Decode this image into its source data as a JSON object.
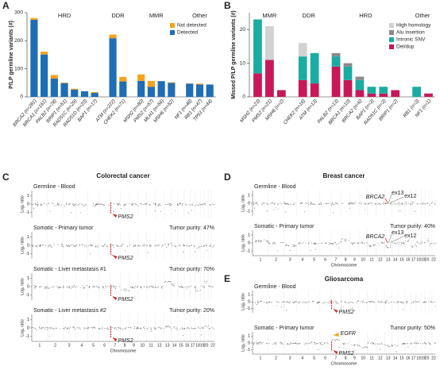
{
  "chart_data": [
    {
      "panel": "A",
      "type": "bar",
      "stacked": true,
      "ylabel": "P/LP germline variants (#)",
      "ylim": [
        0,
        300
      ],
      "yticks": [
        0,
        100,
        200,
        300
      ],
      "legend": "upper right",
      "groups": [
        {
          "name": "HRD",
          "categories": [
            "BRCA2 (n=281)",
            "BRCA1 (n=161)",
            "PALB2 (n=78)",
            "BRIP1 (n=51)",
            "RAD51C (n=29)",
            "RAD51D (n=20)",
            "BAP1 (n=17)"
          ]
        },
        {
          "name": "DDR",
          "categories": [
            "ATM (n=222)",
            "CHEK2 (n=71)"
          ]
        },
        {
          "name": "MMR",
          "categories": [
            "MSH2 (n=80)",
            "PMS2 (n=57)",
            "MLH1 (n=56)",
            "MSH6 (n=52)"
          ]
        },
        {
          "name": "Other",
          "categories": [
            "NF1 (n=48)",
            "RB1 (n=47)",
            "TP53 (n=44)"
          ]
        }
      ],
      "series": [
        {
          "name": "Detected",
          "color": "#1f6db5",
          "values": [
            275,
            151,
            65,
            49,
            26,
            20,
            14,
            209,
            55,
            57,
            36,
            56,
            50,
            47,
            44,
            44
          ]
        },
        {
          "name": "Not detected",
          "color": "#f5a31a",
          "values": [
            6,
            10,
            13,
            2,
            3,
            0,
            3,
            13,
            16,
            23,
            21,
            0,
            2,
            1,
            3,
            0
          ]
        }
      ]
    },
    {
      "panel": "B",
      "type": "bar",
      "stacked": true,
      "ylabel": "Missed P/LP germline variants (#)",
      "ylim": [
        0,
        25
      ],
      "yticks": [
        0,
        10,
        20
      ],
      "legend": "upper right",
      "groups": [
        {
          "name": "MMR",
          "categories": [
            "MSH2 (n=23)",
            "PMS2 (n=21)",
            "MSH6 (n=2)"
          ]
        },
        {
          "name": "DDR",
          "categories": [
            "CHEK2 (n=16)",
            "ATM (n=13)"
          ]
        },
        {
          "name": "HRD",
          "categories": [
            "PALB2 (n=13)",
            "BRCA1 (n=10)",
            "BRCA2 (n=6)",
            "BAP1 (n=3)",
            "RAD51C (n=3)",
            "BRIP1 (n=2)"
          ]
        },
        {
          "name": "Other",
          "categories": [
            "RB1 (n=3)",
            "NF1 (n=1)"
          ]
        }
      ],
      "series": [
        {
          "name": "Del/dup",
          "color": "#c8185a",
          "values": [
            7,
            11,
            2,
            5,
            4,
            9,
            5,
            2,
            1,
            1,
            2,
            0,
            1
          ]
        },
        {
          "name": "Intronic SNV",
          "color": "#1aaca2",
          "values": [
            16,
            0,
            0,
            7,
            9,
            3,
            4,
            3,
            2,
            2,
            0,
            3,
            0
          ]
        },
        {
          "name": "Alu insertion",
          "color": "#8a8a8a",
          "values": [
            0,
            0,
            0,
            0,
            0,
            1,
            1,
            1,
            0,
            0,
            0,
            0,
            0
          ]
        },
        {
          "name": "High homology",
          "color": "#d2d2d2",
          "values": [
            0,
            10,
            0,
            4,
            0,
            0,
            0,
            0,
            0,
            0,
            0,
            0,
            0
          ]
        }
      ]
    },
    {
      "panel": "C",
      "type": "copy-number",
      "title": "Colorectal cancer",
      "ylabel": "Log₂ ratio",
      "xlabel": "Chromosome",
      "ylim": [
        -1.6,
        1.6
      ],
      "yticks": [
        1,
        0,
        -1
      ],
      "categories": [
        1,
        2,
        3,
        4,
        5,
        6,
        7,
        8,
        9,
        10,
        11,
        12,
        13,
        14,
        15,
        16,
        17,
        18,
        19,
        20,
        null,
        22
      ],
      "tracks": [
        {
          "label": "Germline - Blood",
          "annotations": [
            "PMS2"
          ]
        },
        {
          "label": "Somatic - Primary tumor",
          "purity": "Tumor purity: 47%",
          "annotations": [
            "PMS2"
          ]
        },
        {
          "label": "Somatic - Liver metastasis #1",
          "purity": "Tumor purity: 70%",
          "annotations": [
            "PMS2"
          ]
        },
        {
          "label": "Somatic - Liver metastasis #2",
          "purity": "Tumor purity: 20%",
          "annotations": [
            "PMS2"
          ]
        }
      ]
    },
    {
      "panel": "D",
      "type": "copy-number",
      "title": "Breast cancer",
      "ylabel": "Log₂ ratio",
      "xlabel": "Chromosome",
      "ylim": [
        -1.6,
        1.6
      ],
      "yticks": [
        1,
        0,
        -1
      ],
      "categories": [
        1,
        2,
        3,
        4,
        5,
        6,
        7,
        8,
        9,
        10,
        11,
        12,
        13,
        14,
        15,
        16,
        17,
        18,
        19,
        20,
        null,
        22
      ],
      "tracks": [
        {
          "label": "Germline - Blood",
          "annotations": [
            "BRCA2",
            "ex13",
            "ex12"
          ]
        },
        {
          "label": "Somatic - Primary tumor",
          "purity": "Tumor purity: 40%",
          "annotations": [
            "BRCA2",
            "ex13",
            "ex12"
          ]
        }
      ]
    },
    {
      "panel": "E",
      "type": "copy-number",
      "title": "Gliosarcoma",
      "ylabel": "Log₂ ratio",
      "xlabel": "Chromosome",
      "ylim": [
        -1.6,
        1.6
      ],
      "yticks": [
        1,
        0,
        -1
      ],
      "categories": [
        1,
        2,
        3,
        4,
        5,
        6,
        7,
        8,
        9,
        10,
        11,
        12,
        13,
        14,
        15,
        16,
        17,
        18,
        19,
        20,
        null,
        22
      ],
      "tracks": [
        {
          "label": "Germline - Blood",
          "annotations": [
            "PMS2"
          ]
        },
        {
          "label": "Somatic - Primary tumor",
          "purity": "Tumor purity: 50%",
          "annotations": [
            "EGFR",
            "PMS2"
          ]
        }
      ]
    }
  ]
}
